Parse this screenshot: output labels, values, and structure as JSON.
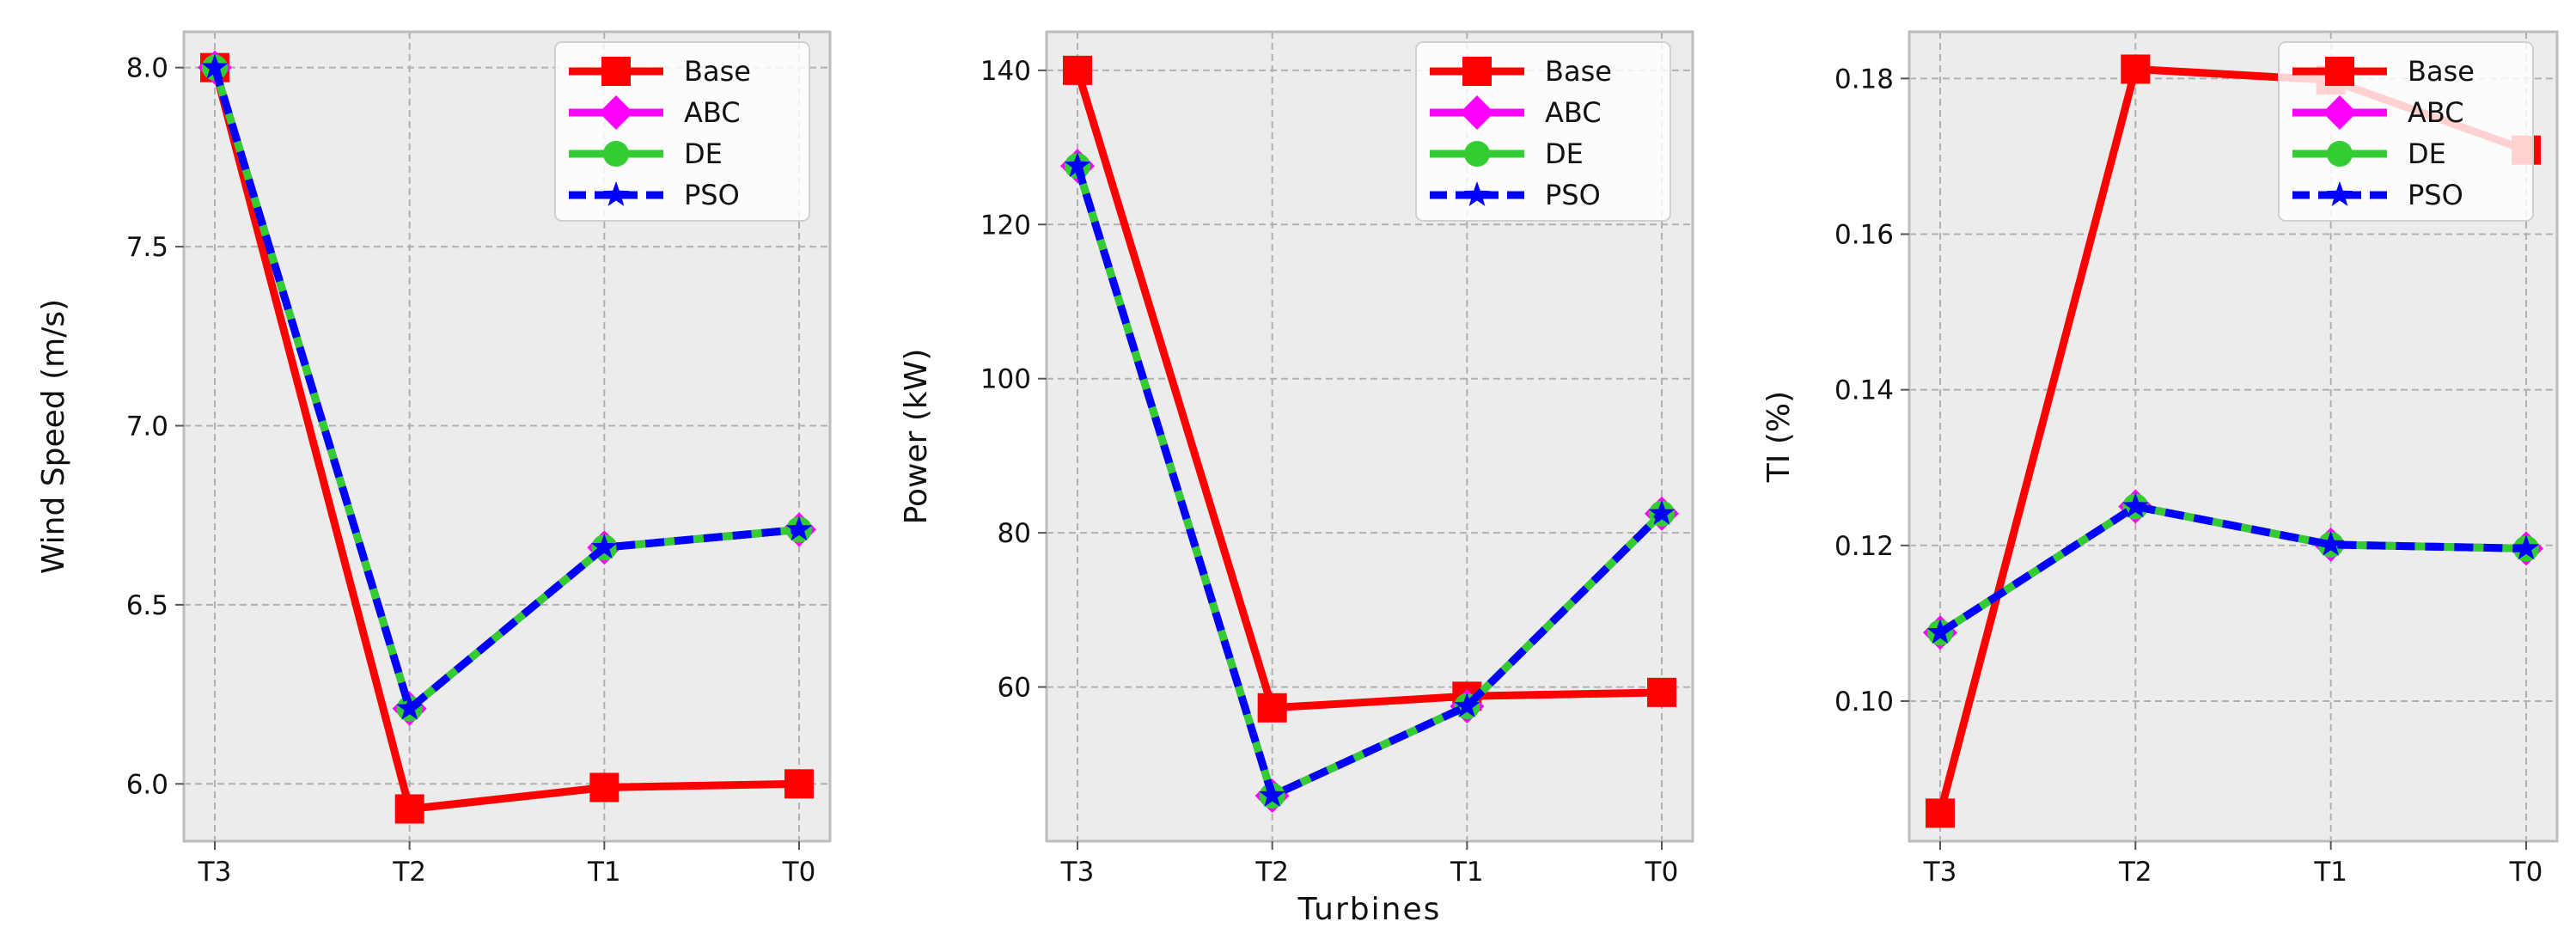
{
  "chart_data": [
    {
      "type": "line",
      "ylabel": "Wind Speed (m/s)",
      "xlabel": "",
      "categories": [
        "T3",
        "T2",
        "T1",
        "T0"
      ],
      "ylim": [
        5.84,
        8.1
      ],
      "yticks": [
        {
          "v": 6.0,
          "label": "6.0"
        },
        {
          "v": 6.5,
          "label": "6.5"
        },
        {
          "v": 7.0,
          "label": "7.0"
        },
        {
          "v": 7.5,
          "label": "7.5"
        },
        {
          "v": 8.0,
          "label": "8.0"
        }
      ],
      "series": [
        {
          "name": "Base",
          "values": [
            8.0,
            5.93,
            5.99,
            6.0
          ]
        },
        {
          "name": "ABC",
          "values": [
            8.0,
            6.21,
            6.66,
            6.71
          ]
        },
        {
          "name": "DE",
          "values": [
            8.0,
            6.21,
            6.66,
            6.71
          ]
        },
        {
          "name": "PSO",
          "values": [
            8.0,
            6.21,
            6.66,
            6.71
          ]
        }
      ],
      "legend_position": "top-right"
    },
    {
      "type": "line",
      "ylabel": "Power (kW)",
      "xlabel": "Turbines",
      "categories": [
        "T3",
        "T2",
        "T1",
        "T0"
      ],
      "ylim": [
        40,
        145
      ],
      "yticks": [
        {
          "v": 60,
          "label": "60"
        },
        {
          "v": 80,
          "label": "80"
        },
        {
          "v": 100,
          "label": "100"
        },
        {
          "v": 120,
          "label": "120"
        },
        {
          "v": 140,
          "label": "140"
        }
      ],
      "series": [
        {
          "name": "Base",
          "values": [
            140,
            57.3,
            58.8,
            59.3
          ]
        },
        {
          "name": "ABC",
          "values": [
            127.6,
            45.9,
            57.5,
            82.5
          ]
        },
        {
          "name": "DE",
          "values": [
            127.6,
            45.9,
            57.5,
            82.5
          ]
        },
        {
          "name": "PSO",
          "values": [
            127.6,
            45.9,
            57.5,
            82.5
          ]
        }
      ],
      "legend_position": "top-right"
    },
    {
      "type": "line",
      "ylabel": "TI (%)",
      "xlabel": "",
      "categories": [
        "T3",
        "T2",
        "T1",
        "T0"
      ],
      "ylim": [
        0.082,
        0.186
      ],
      "yticks": [
        {
          "v": 0.1,
          "label": "0.10"
        },
        {
          "v": 0.12,
          "label": "0.12"
        },
        {
          "v": 0.14,
          "label": "0.14"
        },
        {
          "v": 0.16,
          "label": "0.16"
        },
        {
          "v": 0.18,
          "label": "0.18"
        }
      ],
      "series": [
        {
          "name": "Base",
          "values": [
            0.0856,
            0.1812,
            0.1798,
            0.1708
          ]
        },
        {
          "name": "ABC",
          "values": [
            0.1088,
            0.125,
            0.1201,
            0.1196
          ]
        },
        {
          "name": "DE",
          "values": [
            0.1088,
            0.125,
            0.1201,
            0.1196
          ]
        },
        {
          "name": "PSO",
          "values": [
            0.1088,
            0.125,
            0.1201,
            0.1196
          ]
        }
      ],
      "legend_position": "top-right"
    }
  ],
  "colors": {
    "Base": "#ff0000",
    "ABC": "#ff00ff",
    "DE": "#33cc33",
    "PSO": "#0000ff",
    "panel_bg": "#ececec",
    "grid": "#b0b0b0"
  }
}
